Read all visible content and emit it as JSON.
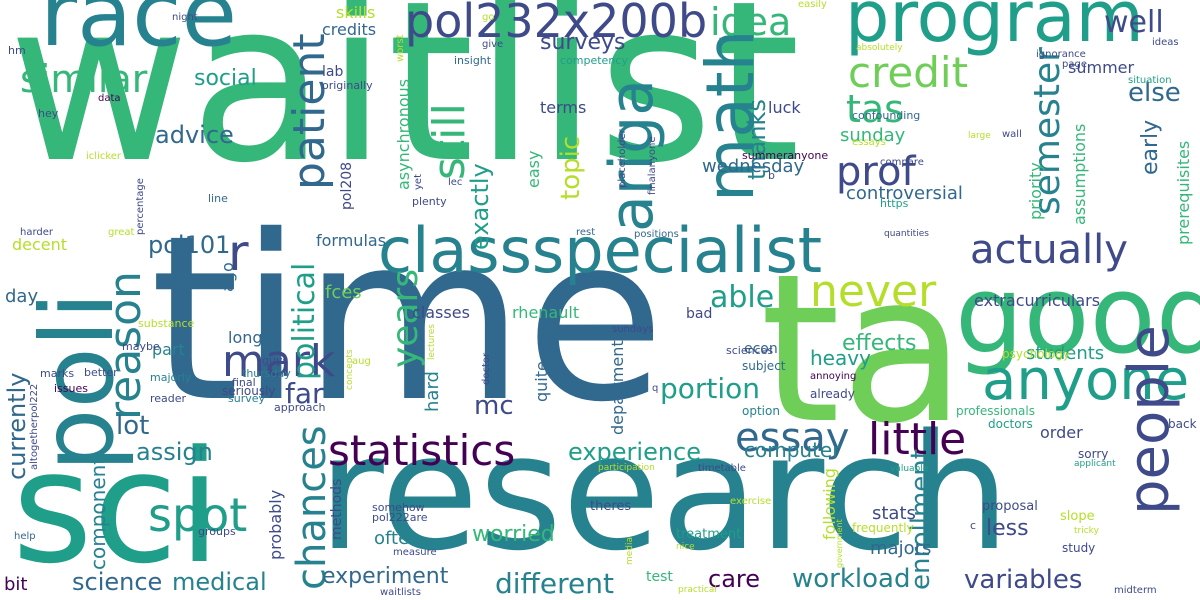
{
  "palette": {
    "deep_purple": "#440154",
    "indigo": "#3e4a89",
    "blue": "#31688e",
    "teal": "#26828e",
    "green_teal": "#1f9e89",
    "green": "#35b779",
    "light_green": "#6ece58",
    "lime": "#b5de2b",
    "yellow": "#fde725"
  },
  "words": [
    {
      "text": "waitlist",
      "color": "#35b779"
    },
    {
      "text": "time",
      "color": "#31688e"
    },
    {
      "text": "research",
      "color": "#26828e"
    },
    {
      "text": "ta",
      "color": "#6ece58"
    },
    {
      "text": "sci",
      "color": "#1f9e89"
    },
    {
      "text": "poli",
      "color": "#26828e"
    },
    {
      "text": "good",
      "color": "#35b779"
    },
    {
      "text": "race",
      "color": "#26828e"
    },
    {
      "text": "program",
      "color": "#1f9e89"
    },
    {
      "text": "classspecialist",
      "color": "#26828e"
    },
    {
      "text": "anyone",
      "color": "#1f9e89"
    },
    {
      "text": "pol232x200b",
      "color": "#3e4a89"
    },
    {
      "text": "math",
      "color": "#26828e"
    },
    {
      "text": "ariga",
      "color": "#26828e"
    },
    {
      "text": "people",
      "color": "#3e4a89"
    },
    {
      "text": "statistics",
      "color": "#440154"
    },
    {
      "text": "little",
      "color": "#440154"
    },
    {
      "text": "idea",
      "color": "#35b779"
    },
    {
      "text": "credit",
      "color": "#6ece58"
    },
    {
      "text": "similar",
      "color": "#35b779"
    },
    {
      "text": "mark",
      "color": "#3e4a89"
    },
    {
      "text": "actually",
      "color": "#3e4a89"
    },
    {
      "text": "never",
      "color": "#b5de2b"
    },
    {
      "text": "essay",
      "color": "#31688e"
    },
    {
      "text": "spot",
      "color": "#1f9e89"
    },
    {
      "text": "patient",
      "color": "#31688e"
    },
    {
      "text": "reason",
      "color": "#26828e"
    },
    {
      "text": "chances",
      "color": "#26828e"
    },
    {
      "text": "political",
      "color": "#1f9e89"
    },
    {
      "text": "still",
      "color": "#35b779"
    },
    {
      "text": "prof",
      "color": "#3e4a89"
    },
    {
      "text": "semester",
      "color": "#26828e"
    },
    {
      "text": "tas",
      "color": "#35b779"
    },
    {
      "text": "well",
      "color": "#3e4a89"
    },
    {
      "text": "else",
      "color": "#31688e"
    },
    {
      "text": "r",
      "color": "#3e4a89"
    },
    {
      "text": "able",
      "color": "#1f9e89"
    },
    {
      "text": "years",
      "color": "#35b779"
    },
    {
      "text": "portion",
      "color": "#1f9e89"
    },
    {
      "text": "experience",
      "color": "#1f9e89"
    },
    {
      "text": "different",
      "color": "#26828e"
    },
    {
      "text": "experiment",
      "color": "#31688e"
    },
    {
      "text": "workload",
      "color": "#26828e"
    },
    {
      "text": "variables",
      "color": "#3e4a89"
    },
    {
      "text": "science",
      "color": "#31688e"
    },
    {
      "text": "medical",
      "color": "#26828e"
    },
    {
      "text": "care",
      "color": "#440154"
    },
    {
      "text": "enrollment",
      "color": "#26828e"
    },
    {
      "text": "surveys",
      "color": "#3e4a89"
    },
    {
      "text": "pol101",
      "color": "#31688e"
    },
    {
      "text": "assign",
      "color": "#26828e"
    },
    {
      "text": "lot",
      "color": "#31688e"
    },
    {
      "text": "far",
      "color": "#3e4a89"
    },
    {
      "text": "mc",
      "color": "#3e4a89"
    },
    {
      "text": "exactly",
      "color": "#1f9e89"
    },
    {
      "text": "topic",
      "color": "#b5de2b"
    },
    {
      "text": "thanks",
      "color": "#26828e"
    },
    {
      "text": "advice",
      "color": "#31688e"
    },
    {
      "text": "social",
      "color": "#1f9e89"
    },
    {
      "text": "currently",
      "color": "#31688e"
    },
    {
      "text": "component",
      "color": "#26828e"
    },
    {
      "text": "effects",
      "color": "#35b779"
    },
    {
      "text": "heavy",
      "color": "#1f9e89"
    },
    {
      "text": "students",
      "color": "#1f9e89"
    },
    {
      "text": "worried",
      "color": "#35b779"
    },
    {
      "text": "computer",
      "color": "#26828e"
    },
    {
      "text": "less",
      "color": "#3e4a89"
    },
    {
      "text": "majors",
      "color": "#31688e"
    },
    {
      "text": "stats",
      "color": "#3e4a89"
    },
    {
      "text": "wednesday",
      "color": "#31688e"
    },
    {
      "text": "controversial",
      "color": "#31688e"
    },
    {
      "text": "extracurriculars",
      "color": "#3e4a89"
    },
    {
      "text": "early",
      "color": "#31688e"
    },
    {
      "text": "priority",
      "color": "#35b779"
    },
    {
      "text": "assumptions",
      "color": "#35b779"
    },
    {
      "text": "prerequisites",
      "color": "#35b779"
    },
    {
      "text": "summer",
      "color": "#3e4a89"
    },
    {
      "text": "sunday",
      "color": "#35b779"
    },
    {
      "text": "luck",
      "color": "#3e4a89"
    },
    {
      "text": "terms",
      "color": "#3e4a89"
    },
    {
      "text": "skills",
      "color": "#b5de2b"
    },
    {
      "text": "credits",
      "color": "#31688e"
    },
    {
      "text": "lab",
      "color": "#3e4a89"
    },
    {
      "text": "asynchronous",
      "color": "#35b779"
    },
    {
      "text": "easy",
      "color": "#35b779"
    },
    {
      "text": "formulas",
      "color": "#31688e"
    },
    {
      "text": "classes",
      "color": "#3e4a89"
    },
    {
      "text": "rhenault",
      "color": "#35b779"
    },
    {
      "text": "fces",
      "color": "#6ece58"
    },
    {
      "text": "pol208",
      "color": "#3e4a89"
    },
    {
      "text": "decent",
      "color": "#b5de2b"
    },
    {
      "text": "day",
      "color": "#31688e"
    },
    {
      "text": "long",
      "color": "#31688e"
    },
    {
      "text": "part",
      "color": "#26828e"
    },
    {
      "text": "hard",
      "color": "#26828e"
    },
    {
      "text": "quite",
      "color": "#31688e"
    },
    {
      "text": "department",
      "color": "#31688e"
    },
    {
      "text": "econ",
      "color": "#31688e"
    },
    {
      "text": "bad",
      "color": "#3e4a89"
    },
    {
      "text": "ago",
      "color": "#31688e"
    },
    {
      "text": "probably",
      "color": "#3e4a89"
    },
    {
      "text": "methods",
      "color": "#3e4a89"
    },
    {
      "text": "often",
      "color": "#26828e"
    },
    {
      "text": "following",
      "color": "#b5de2b"
    },
    {
      "text": "order",
      "color": "#3e4a89"
    },
    {
      "text": "bit",
      "color": "#440154"
    },
    {
      "text": "test",
      "color": "#35b779"
    },
    {
      "text": "treatment",
      "color": "#1f9e89"
    },
    {
      "text": "theres",
      "color": "#3e4a89"
    },
    {
      "text": "proposal",
      "color": "#3e4a89"
    },
    {
      "text": "frequently",
      "color": "#b5de2b"
    },
    {
      "text": "slope",
      "color": "#b5de2b"
    },
    {
      "text": "study",
      "color": "#3e4a89"
    },
    {
      "text": "sorry",
      "color": "#3e4a89"
    },
    {
      "text": "back",
      "color": "#3e4a89"
    },
    {
      "text": "doctors",
      "color": "#1f9e89"
    },
    {
      "text": "professionals",
      "color": "#35b779"
    },
    {
      "text": "psychology",
      "color": "#b5de2b"
    },
    {
      "text": "already",
      "color": "#3e4a89"
    },
    {
      "text": "annoying",
      "color": "#440154"
    },
    {
      "text": "option",
      "color": "#26828e"
    },
    {
      "text": "subject",
      "color": "#31688e"
    },
    {
      "text": "sciences",
      "color": "#3e4a89"
    },
    {
      "text": "guys",
      "color": "#3e4a89"
    },
    {
      "text": "thursday",
      "color": "#26828e"
    },
    {
      "text": "final",
      "color": "#3e4a89"
    },
    {
      "text": "seriously",
      "color": "#3e4a89"
    },
    {
      "text": "survey",
      "color": "#26828e"
    },
    {
      "text": "approach",
      "color": "#3e4a89"
    },
    {
      "text": "reader",
      "color": "#3e4a89"
    },
    {
      "text": "majorly",
      "color": "#26828e"
    },
    {
      "text": "marks",
      "color": "#3e4a89"
    },
    {
      "text": "issues",
      "color": "#440154"
    },
    {
      "text": "better",
      "color": "#3e4a89"
    },
    {
      "text": "maybe",
      "color": "#3e4a89"
    },
    {
      "text": "substance",
      "color": "#b5de2b"
    },
    {
      "text": "harder",
      "color": "#3e4a89"
    },
    {
      "text": "great",
      "color": "#b5de2b"
    },
    {
      "text": "line",
      "color": "#31688e"
    },
    {
      "text": "hey",
      "color": "#3e4a89"
    },
    {
      "text": "data",
      "color": "#440154"
    },
    {
      "text": "hm",
      "color": "#3e4a89"
    },
    {
      "text": "night",
      "color": "#3e4a89"
    },
    {
      "text": "worst",
      "color": "#b5de2b"
    },
    {
      "text": "go",
      "color": "#b5de2b"
    },
    {
      "text": "give",
      "color": "#3e4a89"
    },
    {
      "text": "insight",
      "color": "#31688e"
    },
    {
      "text": "competency",
      "color": "#1f9e89"
    },
    {
      "text": "originally",
      "color": "#3e4a89"
    },
    {
      "text": "easily",
      "color": "#b5de2b"
    },
    {
      "text": "absolutely",
      "color": "#b5de2b"
    },
    {
      "text": "ignorance",
      "color": "#3e4a89"
    },
    {
      "text": "page",
      "color": "#3e4a89"
    },
    {
      "text": "ideas",
      "color": "#3e4a89"
    },
    {
      "text": "situation",
      "color": "#1f9e89"
    },
    {
      "text": "confounding",
      "color": "#31688e"
    },
    {
      "text": "essays",
      "color": "#b5de2b"
    },
    {
      "text": "compare",
      "color": "#3e4a89"
    },
    {
      "text": "wall",
      "color": "#3e4a89"
    },
    {
      "text": "large",
      "color": "#b5de2b"
    },
    {
      "text": "https",
      "color": "#1f9e89"
    },
    {
      "text": "quantities",
      "color": "#3e4a89"
    },
    {
      "text": "summeranyone",
      "color": "#440154"
    },
    {
      "text": "placeholder",
      "color": "#3e4a89"
    },
    {
      "text": "finalanyone",
      "color": "#3e4a89"
    },
    {
      "text": "positions",
      "color": "#31688e"
    },
    {
      "text": "rest",
      "color": "#31688e"
    },
    {
      "text": "iclicker",
      "color": "#b5de2b"
    },
    {
      "text": "percentage",
      "color": "#3e4a89"
    },
    {
      "text": "yet",
      "color": "#3e4a89"
    },
    {
      "text": "lec",
      "color": "#3e4a89"
    },
    {
      "text": "plenty",
      "color": "#3e4a89"
    },
    {
      "text": "concepts",
      "color": "#b5de2b"
    },
    {
      "text": "lectures",
      "color": "#b5de2b"
    },
    {
      "text": "doctor",
      "color": "#3e4a89"
    },
    {
      "text": "sundays",
      "color": "#3e4a89"
    },
    {
      "text": "aug",
      "color": "#b5de2b"
    },
    {
      "text": "altogetherpol222",
      "color": "#3e4a89"
    },
    {
      "text": "help",
      "color": "#31688e"
    },
    {
      "text": "groups",
      "color": "#3e4a89"
    },
    {
      "text": "somehow",
      "color": "#3e4a89"
    },
    {
      "text": "pol222are",
      "color": "#3e4a89"
    },
    {
      "text": "measure",
      "color": "#3e4a89"
    },
    {
      "text": "waitlists",
      "color": "#3e4a89"
    },
    {
      "text": "media",
      "color": "#b5de2b"
    },
    {
      "text": "practical",
      "color": "#b5de2b"
    },
    {
      "text": "nice",
      "color": "#b5de2b"
    },
    {
      "text": "participation",
      "color": "#b5de2b"
    },
    {
      "text": "timetable",
      "color": "#3e4a89"
    },
    {
      "text": "valuable",
      "color": "#1f9e89"
    },
    {
      "text": "exercise",
      "color": "#b5de2b"
    },
    {
      "text": "government",
      "color": "#b5de2b"
    },
    {
      "text": "tricky",
      "color": "#b5de2b"
    },
    {
      "text": "applicant",
      "color": "#1f9e89"
    },
    {
      "text": "midterm",
      "color": "#3e4a89"
    },
    {
      "text": "b",
      "color": "#3e4a89"
    },
    {
      "text": "q",
      "color": "#3e4a89"
    },
    {
      "text": "c",
      "color": "#3e4a89"
    }
  ]
}
